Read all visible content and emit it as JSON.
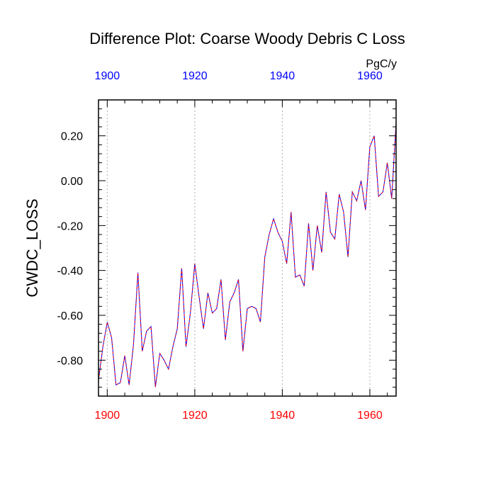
{
  "chart_data": {
    "type": "line",
    "title": "Difference Plot: Coarse Woody Debris C Loss",
    "units": "PgC/y",
    "ylabel": "CWDC_LOSS",
    "xlabel": "",
    "xlim": [
      1898,
      1966
    ],
    "ylim": [
      -0.96,
      0.36
    ],
    "x_ticks": [
      1900,
      1920,
      1940,
      1960
    ],
    "x_tick_labels": [
      "1900",
      "1920",
      "1940",
      "1960"
    ],
    "y_ticks": [
      0.2,
      0.0,
      -0.2,
      -0.4,
      -0.6,
      -0.8
    ],
    "y_tick_labels": [
      "0.20",
      "0.00",
      "-0.20",
      "-0.40",
      "-0.60",
      "-0.80"
    ],
    "colors": {
      "bottom_axis_labels": "#ff0000",
      "top_axis_labels": "#0000ff",
      "series_a": "#0000ff",
      "series_b": "#ff0000",
      "grid": "#b0b0b0"
    },
    "x": [
      1898,
      1899,
      1900,
      1901,
      1902,
      1903,
      1904,
      1905,
      1906,
      1907,
      1908,
      1909,
      1910,
      1911,
      1912,
      1913,
      1914,
      1915,
      1916,
      1917,
      1918,
      1919,
      1920,
      1921,
      1922,
      1923,
      1924,
      1925,
      1926,
      1927,
      1928,
      1929,
      1930,
      1931,
      1932,
      1933,
      1934,
      1935,
      1936,
      1937,
      1938,
      1939,
      1940,
      1941,
      1942,
      1943,
      1944,
      1945,
      1946,
      1947,
      1948,
      1949,
      1950,
      1951,
      1952,
      1953,
      1954,
      1955,
      1956,
      1957,
      1958,
      1959,
      1960,
      1961,
      1962,
      1963,
      1964,
      1965,
      1966
    ],
    "series": [
      {
        "name": "Difference",
        "values": [
          -0.89,
          -0.74,
          -0.63,
          -0.7,
          -0.91,
          -0.9,
          -0.78,
          -0.91,
          -0.73,
          -0.41,
          -0.76,
          -0.67,
          -0.65,
          -0.92,
          -0.77,
          -0.8,
          -0.84,
          -0.74,
          -0.66,
          -0.39,
          -0.74,
          -0.59,
          -0.37,
          -0.52,
          -0.66,
          -0.5,
          -0.59,
          -0.57,
          -0.44,
          -0.71,
          -0.54,
          -0.5,
          -0.44,
          -0.76,
          -0.57,
          -0.56,
          -0.57,
          -0.63,
          -0.34,
          -0.24,
          -0.17,
          -0.23,
          -0.27,
          -0.37,
          -0.14,
          -0.43,
          -0.42,
          -0.47,
          -0.19,
          -0.4,
          -0.2,
          -0.32,
          -0.05,
          -0.23,
          -0.26,
          -0.06,
          -0.14,
          -0.34,
          -0.05,
          -0.09,
          0.0,
          -0.13,
          0.15,
          0.2,
          -0.07,
          -0.05,
          0.08,
          -0.08,
          0.26
        ]
      }
    ]
  }
}
